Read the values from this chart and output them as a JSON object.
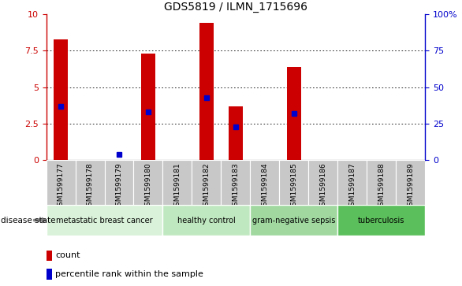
{
  "title": "GDS5819 / ILMN_1715696",
  "samples": [
    "GSM1599177",
    "GSM1599178",
    "GSM1599179",
    "GSM1599180",
    "GSM1599181",
    "GSM1599182",
    "GSM1599183",
    "GSM1599184",
    "GSM1599185",
    "GSM1599186",
    "GSM1599187",
    "GSM1599188",
    "GSM1599189"
  ],
  "counts": [
    8.3,
    0.0,
    0.0,
    7.3,
    0.0,
    9.4,
    3.7,
    0.0,
    6.4,
    0.0,
    0.0,
    0.0,
    0.0
  ],
  "percentile_ranks": [
    3.7,
    0.0,
    0.4,
    3.3,
    0.0,
    4.3,
    2.3,
    0.0,
    3.2,
    0.0,
    0.0,
    0.0,
    0.0
  ],
  "percentile_has_marker": [
    true,
    false,
    true,
    true,
    false,
    true,
    true,
    false,
    true,
    false,
    false,
    false,
    false
  ],
  "ylim_left": [
    0,
    10
  ],
  "ylim_right": [
    0,
    100
  ],
  "yticks_left": [
    0,
    2.5,
    5.0,
    7.5,
    10
  ],
  "yticks_right": [
    0,
    25,
    50,
    75,
    100
  ],
  "ytick_labels_right": [
    "0",
    "25",
    "50",
    "75",
    "100%"
  ],
  "groups": [
    {
      "label": "metastatic breast cancer",
      "start": 0,
      "end": 4,
      "color": "#d9f2d9"
    },
    {
      "label": "healthy control",
      "start": 4,
      "end": 7,
      "color": "#c0e8c0"
    },
    {
      "label": "gram-negative sepsis",
      "start": 7,
      "end": 10,
      "color": "#a0d8a0"
    },
    {
      "label": "tuberculosis",
      "start": 10,
      "end": 13,
      "color": "#5bbf5b"
    }
  ],
  "bar_color": "#cc0000",
  "marker_color": "#0000cc",
  "axis_color_left": "#cc0000",
  "axis_color_right": "#0000cc",
  "sample_box_color": "#c8c8c8",
  "disease_state_label": "disease state",
  "legend_count": "count",
  "legend_percentile": "percentile rank within the sample"
}
